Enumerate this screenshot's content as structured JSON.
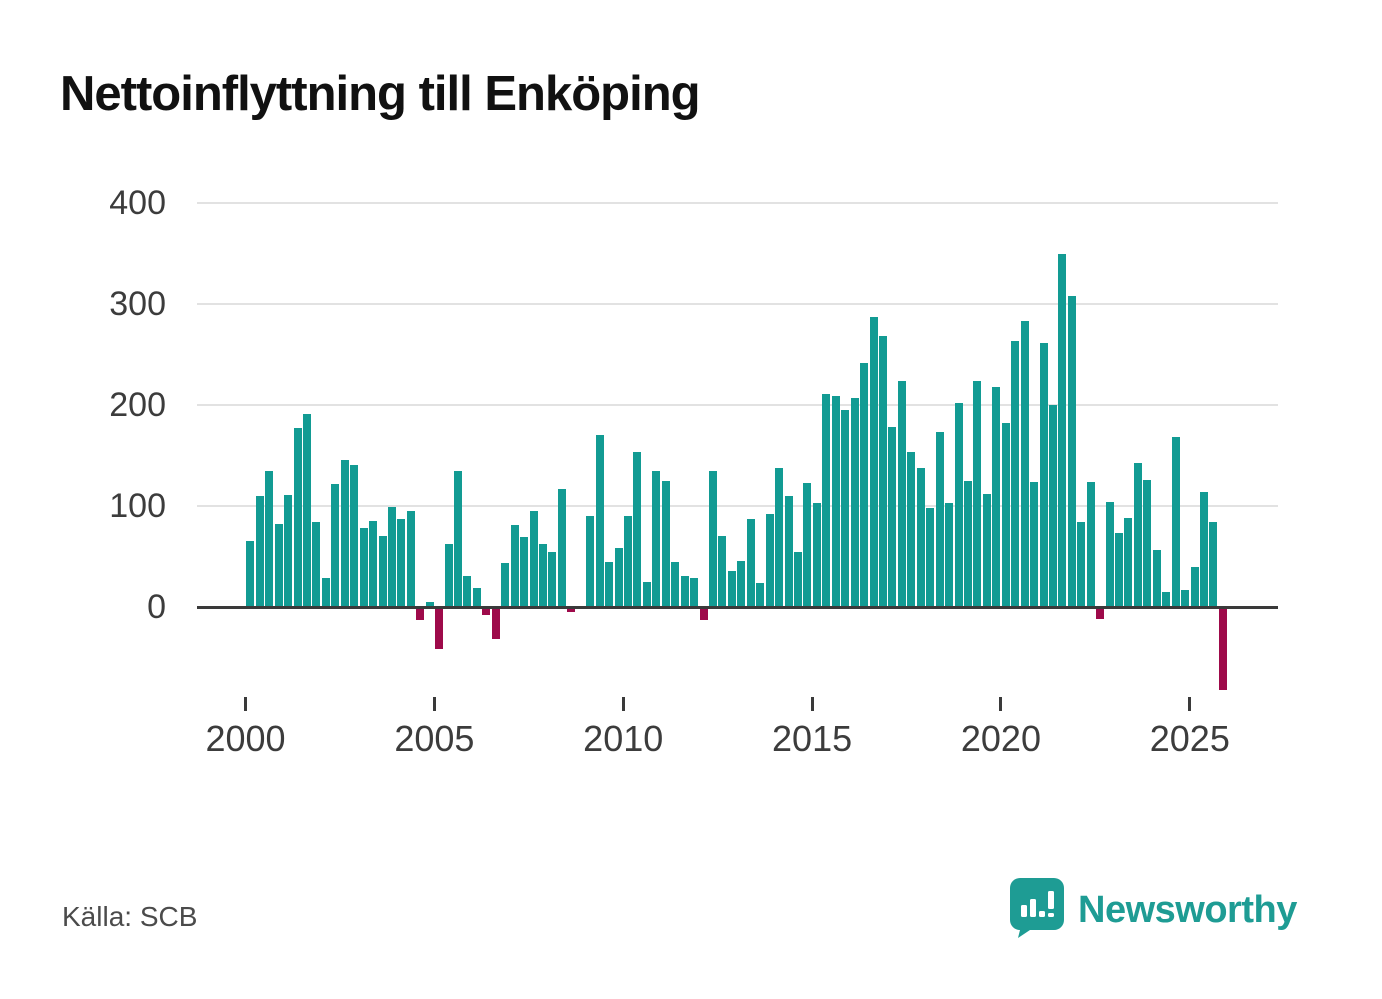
{
  "title": "Nettoinflyttning till Enköping",
  "source": "Källa: SCB",
  "branding": {
    "name": "Newsworthy",
    "logo": "speech-bubble-bar-chart-icon"
  },
  "colors": {
    "positive_bar": "#129b93",
    "negative_bar": "#9e0a4a",
    "axis": "#3a3a3a",
    "grid": "#e2e2e2",
    "tick_text": "#3c3c3c",
    "title_text": "#111111",
    "brand_teal": "#1e9c94"
  },
  "chart_data": {
    "type": "bar",
    "title": "Nettoinflyttning till Enköping",
    "xlabel": "",
    "ylabel": "",
    "frequency": "quarterly",
    "start_period": "2000-Q1",
    "end_period": "2025-Q4",
    "x_tick_labels": [
      "2000",
      "2005",
      "2010",
      "2015",
      "2020",
      "2025"
    ],
    "x_tick_years": [
      2000,
      2005,
      2010,
      2015,
      2020,
      2025
    ],
    "y_tick_labels": [
      "0",
      "100",
      "200",
      "300",
      "400"
    ],
    "y_ticks": [
      0,
      100,
      200,
      300,
      400
    ],
    "ylim": [
      -95,
      420
    ],
    "grid": "horizontal",
    "legend": "none",
    "values": [
      65,
      110,
      135,
      82,
      111,
      177,
      191,
      84,
      29,
      122,
      146,
      141,
      78,
      85,
      70,
      99,
      87,
      95,
      -11,
      5,
      -40,
      62,
      135,
      31,
      19,
      -6,
      -30,
      44,
      81,
      69,
      95,
      62,
      55,
      117,
      -3,
      0,
      90,
      170,
      45,
      58,
      90,
      154,
      25,
      135,
      125,
      45,
      31,
      29,
      -11,
      135,
      70,
      36,
      46,
      87,
      24,
      92,
      138,
      110,
      55,
      123,
      103,
      211,
      209,
      195,
      207,
      242,
      287,
      269,
      178,
      224,
      154,
      138,
      98,
      173,
      103,
      202,
      125,
      224,
      112,
      218,
      182,
      264,
      283,
      124,
      262,
      200,
      350,
      308,
      84,
      124,
      -10,
      104,
      73,
      88,
      143,
      126,
      56,
      15,
      168,
      17,
      40,
      114,
      84,
      -80
    ]
  }
}
